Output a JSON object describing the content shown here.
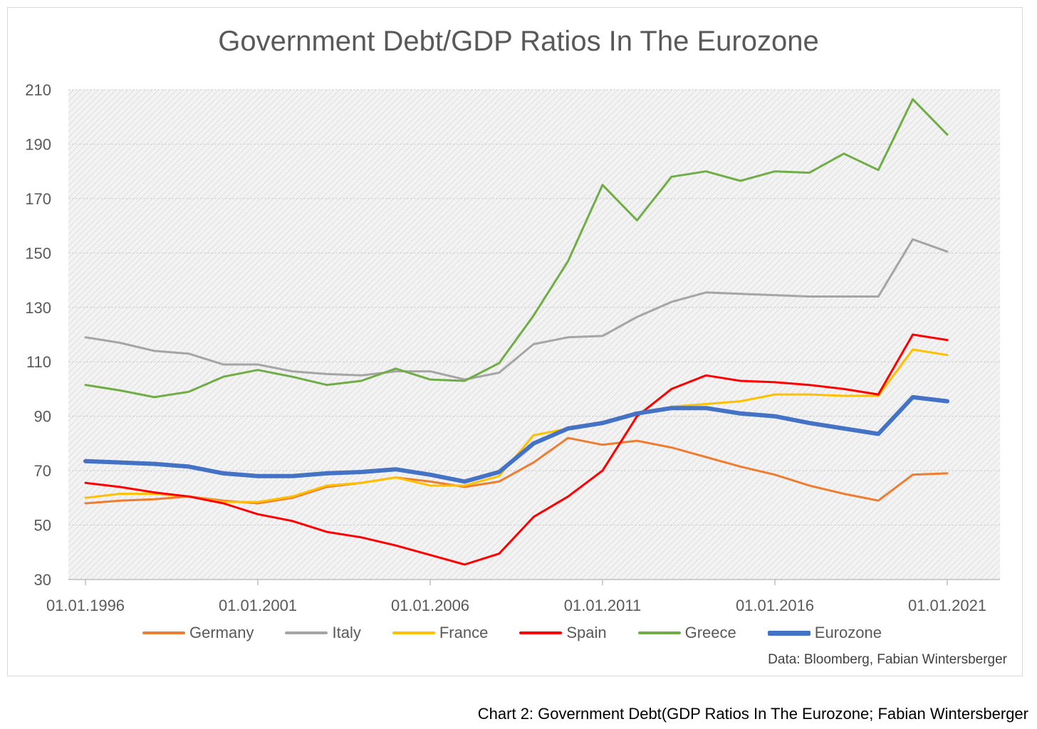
{
  "title": "Government Debt/GDP Ratios In The Eurozone",
  "source": "Data: Bloomberg, Fabian Wintersberger",
  "caption": "Chart 2: Government Debt(GDP Ratios In The Eurozone; Fabian Wintersberger",
  "chart_data": {
    "type": "line",
    "title": "Government Debt/GDP Ratios In The Eurozone",
    "xlabel": "",
    "ylabel": "",
    "ylim": [
      30,
      210
    ],
    "yticks": [
      30,
      50,
      70,
      90,
      110,
      130,
      150,
      170,
      190,
      210
    ],
    "xticks": [
      "01.01.1996",
      "01.01.2001",
      "01.01.2006",
      "01.01.2011",
      "01.01.2016",
      "01.01.2021"
    ],
    "grid": true,
    "legend_position": "bottom",
    "x": [
      1996,
      1997,
      1998,
      1999,
      2000,
      2001,
      2002,
      2003,
      2004,
      2005,
      2006,
      2007,
      2008,
      2009,
      2010,
      2011,
      2012,
      2013,
      2014,
      2015,
      2016,
      2017,
      2018,
      2019,
      2020,
      2021
    ],
    "series": [
      {
        "name": "Germany",
        "color": "#ED7D31",
        "width": 3,
        "values": [
          58,
          59,
          59.5,
          60.5,
          59,
          58,
          60,
          64,
          65.5,
          67.5,
          66,
          64,
          66,
          73,
          82,
          79.5,
          81,
          78.5,
          75,
          71.5,
          68.5,
          64.5,
          61.5,
          59,
          68.5,
          69
        ]
      },
      {
        "name": "Italy",
        "color": "#A5A5A5",
        "width": 3,
        "values": [
          119,
          117,
          114,
          113,
          109,
          109,
          106.5,
          105.5,
          105,
          106.5,
          106.5,
          103.5,
          106,
          116.5,
          119,
          119.5,
          126.5,
          132,
          135.5,
          135,
          134.5,
          134,
          134,
          134,
          155,
          150.5
        ]
      },
      {
        "name": "France",
        "color": "#FFC000",
        "width": 3,
        "values": [
          60,
          61.5,
          61.5,
          60.5,
          58.5,
          58.5,
          60.5,
          64.5,
          65.5,
          67.5,
          64.5,
          64.5,
          68,
          83,
          85.5,
          87.5,
          90.5,
          93.5,
          94.5,
          95.5,
          98,
          98,
          97.5,
          97.5,
          114.5,
          112.5
        ]
      },
      {
        "name": "Spain",
        "color": "#FF0000",
        "width": 3,
        "values": [
          65.5,
          64,
          62,
          60.5,
          58,
          54,
          51.5,
          47.5,
          45.5,
          42.5,
          39,
          35.5,
          39.5,
          53,
          60.5,
          70,
          90,
          100,
          105,
          103,
          102.5,
          101.5,
          100,
          98,
          120,
          118
        ]
      },
      {
        "name": "Greece",
        "color": "#70AD47",
        "width": 3,
        "values": [
          101.5,
          99.5,
          97,
          99,
          104.5,
          107,
          104.5,
          101.5,
          103,
          107.5,
          103.5,
          103,
          109.5,
          127,
          147,
          175,
          162,
          178,
          180,
          176.5,
          180,
          179.5,
          186.5,
          180.5,
          206.5,
          193.5
        ]
      },
      {
        "name": "Eurozone",
        "color": "#4472C4",
        "width": 6,
        "values": [
          73.5,
          73,
          72.5,
          71.5,
          69,
          68,
          68,
          69,
          69.5,
          70.5,
          68.5,
          66,
          69.5,
          80,
          85.5,
          87.5,
          91,
          93,
          93,
          91,
          90,
          87.5,
          85.5,
          83.5,
          97,
          95.5
        ]
      }
    ]
  }
}
